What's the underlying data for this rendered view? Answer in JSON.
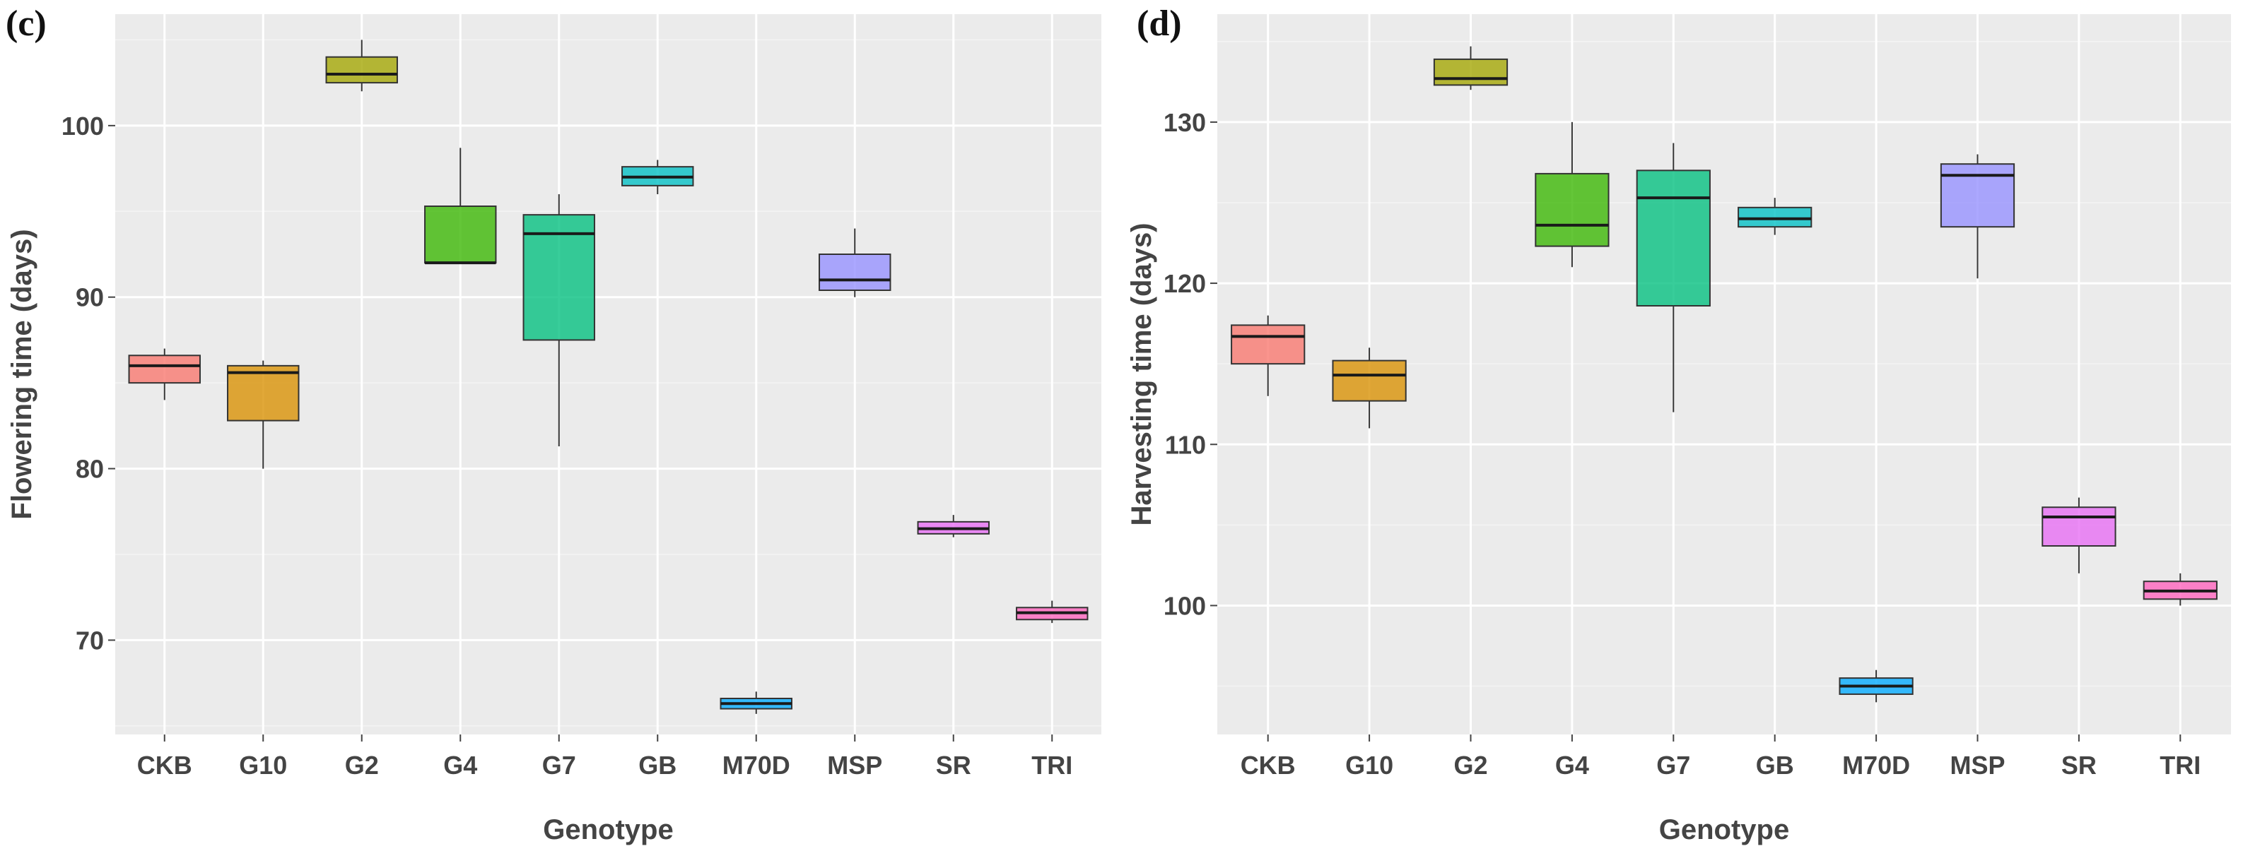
{
  "chart_data": [
    {
      "type": "box",
      "panel_label": "(c)",
      "xlabel": "Genotype",
      "ylabel": "Flowering time (days)",
      "ylim": [
        64.5,
        106.5
      ],
      "yticks": [
        70,
        80,
        90,
        100
      ],
      "categories": [
        "CKB",
        "G10",
        "G2",
        "G4",
        "G7",
        "GB",
        "M70D",
        "MSP",
        "SR",
        "TRI"
      ],
      "colors": [
        "#F8766D",
        "#D89000",
        "#A3A500",
        "#39B600",
        "#00BF7D",
        "#00BFC4",
        "#00A9FF",
        "#9590FF",
        "#E76BF3",
        "#FF62BC"
      ],
      "boxes": [
        {
          "min": 84.0,
          "q1": 85.0,
          "median": 86.0,
          "q3": 86.6,
          "max": 87.0
        },
        {
          "min": 80.0,
          "q1": 82.8,
          "median": 85.6,
          "q3": 86.0,
          "max": 86.3
        },
        {
          "min": 102.0,
          "q1": 102.5,
          "median": 103.0,
          "q3": 104.0,
          "max": 105.0
        },
        {
          "min": 92.0,
          "q1": 92.0,
          "median": 92.0,
          "q3": 95.3,
          "max": 98.7
        },
        {
          "min": 81.3,
          "q1": 87.5,
          "median": 93.7,
          "q3": 94.8,
          "max": 96.0
        },
        {
          "min": 96.0,
          "q1": 96.5,
          "median": 97.0,
          "q3": 97.6,
          "max": 98.0
        },
        {
          "min": 65.7,
          "q1": 66.0,
          "median": 66.3,
          "q3": 66.6,
          "max": 67.0
        },
        {
          "min": 90.0,
          "q1": 90.4,
          "median": 91.0,
          "q3": 92.5,
          "max": 94.0
        },
        {
          "min": 76.0,
          "q1": 76.2,
          "median": 76.5,
          "q3": 76.9,
          "max": 77.3
        },
        {
          "min": 71.0,
          "q1": 71.2,
          "median": 71.6,
          "q3": 71.9,
          "max": 72.3
        }
      ]
    },
    {
      "type": "box",
      "panel_label": "(d)",
      "xlabel": "Genotype",
      "ylabel": "Harvesting time (days)",
      "ylim": [
        92.0,
        136.7
      ],
      "yticks": [
        100,
        110,
        120,
        130
      ],
      "categories": [
        "CKB",
        "G10",
        "G2",
        "G4",
        "G7",
        "GB",
        "M70D",
        "MSP",
        "SR",
        "TRI"
      ],
      "colors": [
        "#F8766D",
        "#D89000",
        "#A3A500",
        "#39B600",
        "#00BF7D",
        "#00BFC4",
        "#00A9FF",
        "#9590FF",
        "#E76BF3",
        "#FF62BC"
      ],
      "boxes": [
        {
          "min": 113.0,
          "q1": 115.0,
          "median": 116.7,
          "q3": 117.4,
          "max": 118.0
        },
        {
          "min": 111.0,
          "q1": 112.7,
          "median": 114.3,
          "q3": 115.2,
          "max": 116.0
        },
        {
          "min": 132.0,
          "q1": 132.3,
          "median": 132.7,
          "q3": 133.9,
          "max": 134.7
        },
        {
          "min": 121.0,
          "q1": 122.3,
          "median": 123.6,
          "q3": 126.8,
          "max": 130.0
        },
        {
          "min": 112.0,
          "q1": 118.6,
          "median": 125.3,
          "q3": 127.0,
          "max": 128.7
        },
        {
          "min": 123.0,
          "q1": 123.5,
          "median": 124.0,
          "q3": 124.7,
          "max": 125.3
        },
        {
          "min": 94.0,
          "q1": 94.5,
          "median": 95.0,
          "q3": 95.5,
          "max": 96.0
        },
        {
          "min": 120.3,
          "q1": 123.5,
          "median": 126.7,
          "q3": 127.4,
          "max": 128.0
        },
        {
          "min": 102.0,
          "q1": 103.7,
          "median": 105.5,
          "q3": 106.1,
          "max": 106.7
        },
        {
          "min": 100.0,
          "q1": 100.4,
          "median": 100.9,
          "q3": 101.5,
          "max": 102.0
        }
      ]
    }
  ]
}
